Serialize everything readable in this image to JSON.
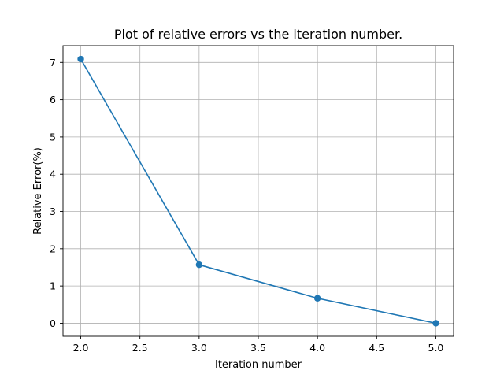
{
  "chart_data": {
    "type": "line",
    "title": "Plot of relative errors vs the iteration number.",
    "xlabel": "Iteration number",
    "ylabel": "Relative Error(%)",
    "xlim": [
      1.85,
      5.15
    ],
    "ylim": [
      -0.35,
      7.45
    ],
    "xticks": [
      2.0,
      2.5,
      3.0,
      3.5,
      4.0,
      4.5,
      5.0
    ],
    "xtick_labels": [
      "2.0",
      "2.5",
      "3.0",
      "3.5",
      "4.0",
      "4.5",
      "5.0"
    ],
    "yticks": [
      0,
      1,
      2,
      3,
      4,
      5,
      6,
      7
    ],
    "ytick_labels": [
      "0",
      "1",
      "2",
      "3",
      "4",
      "5",
      "6",
      "7"
    ],
    "grid": true,
    "series": [
      {
        "x": [
          2,
          3,
          4,
          5
        ],
        "values": [
          7.09,
          1.57,
          0.67,
          0.0
        ],
        "color": "#1f77b4",
        "marker": "circle"
      }
    ]
  }
}
